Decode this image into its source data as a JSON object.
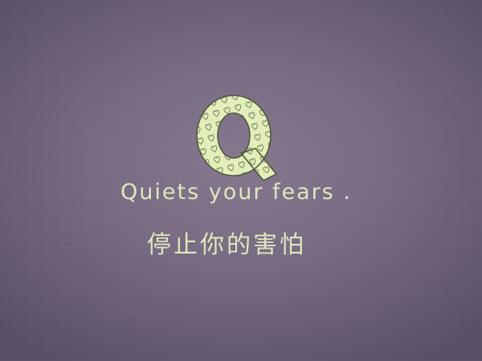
{
  "logo": {
    "letter": "Q",
    "fill_color": "#e3eebb",
    "stroke_color": "#4e5a3e",
    "pattern": "heart-icon"
  },
  "tagline": "Quiets your fears .",
  "subtitle": "停止你的害怕",
  "colors": {
    "background": "#776a82",
    "text": "#dfe7bd"
  }
}
